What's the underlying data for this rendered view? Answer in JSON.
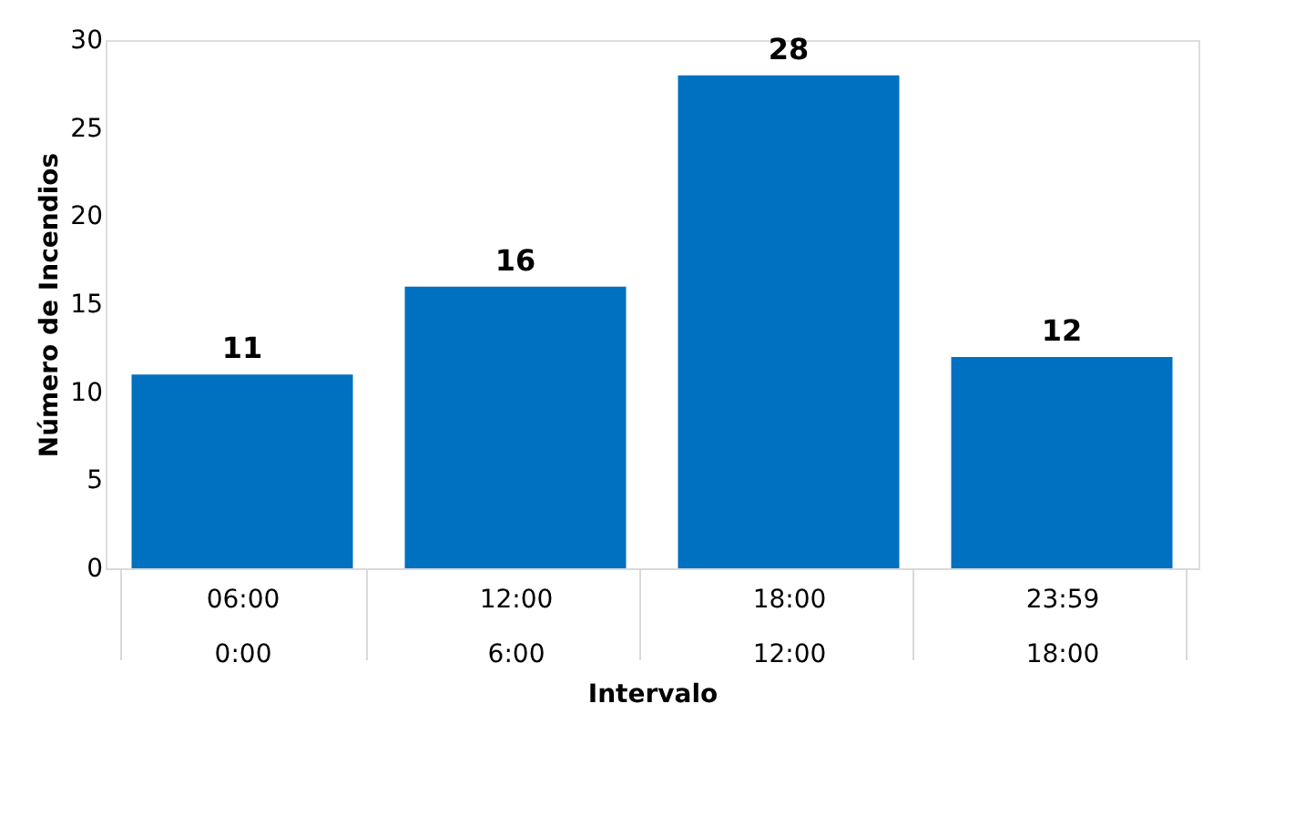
{
  "chart_data": {
    "type": "bar",
    "xlabel": "Intervalo",
    "ylabel": "Número de Incendios",
    "categories": [
      "06:00\n0:00",
      "12:00\n6:00",
      "18:00\n12:00",
      "23:59\n18:00"
    ],
    "values": [
      11,
      16,
      28,
      12
    ],
    "color": "#0070c0",
    "ylim": [
      0,
      30
    ],
    "yticks": [
      0,
      5,
      10,
      15,
      20,
      25,
      30
    ],
    "data_labels": true,
    "grid": false
  }
}
